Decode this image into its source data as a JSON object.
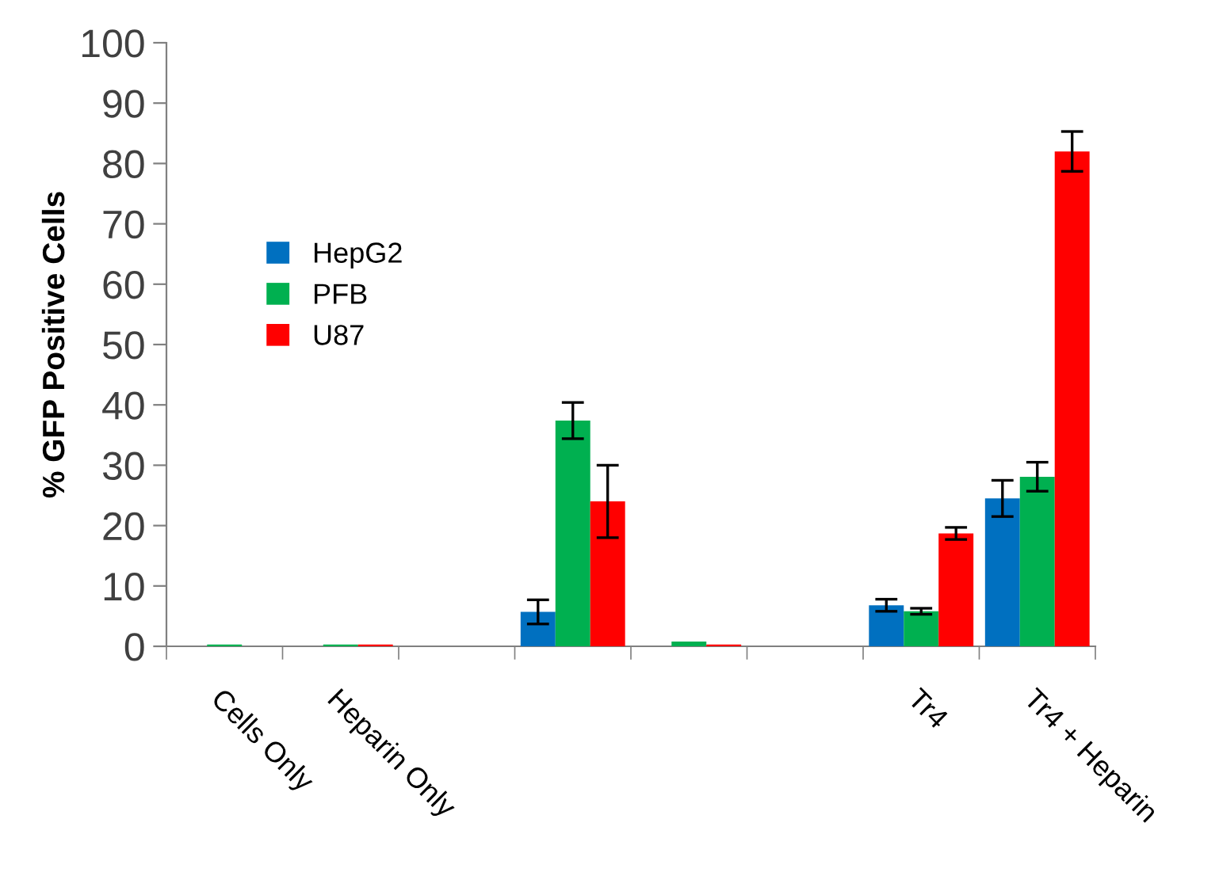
{
  "chart_data": {
    "type": "bar",
    "ylabel": "% GFP Positive Cells",
    "categories": [
      "Cells Only",
      "Heparin Only",
      null,
      null,
      null,
      null,
      "Tr4",
      "Tr4 + Heparin"
    ],
    "series": [
      {
        "name": "HepG2",
        "color": "#0070c0",
        "values": [
          0,
          0,
          null,
          5.7,
          0,
          null,
          6.8,
          24.5
        ],
        "errors": [
          null,
          null,
          null,
          2,
          null,
          null,
          1,
          3
        ]
      },
      {
        "name": "PFB",
        "color": "#00b050",
        "values": [
          0.3,
          0.3,
          null,
          37.4,
          0.8,
          null,
          5.8,
          28.1
        ],
        "errors": [
          null,
          null,
          null,
          3,
          null,
          null,
          0.5,
          2.4
        ]
      },
      {
        "name": "U87",
        "color": "#ff0000",
        "values": [
          0,
          0.3,
          null,
          24,
          0.3,
          null,
          18.7,
          82
        ],
        "errors": [
          null,
          null,
          null,
          6,
          null,
          null,
          1,
          3.3
        ]
      }
    ],
    "ylim": [
      0,
      100
    ],
    "yticks": [
      0,
      10,
      20,
      30,
      40,
      50,
      60,
      70,
      80,
      90,
      100
    ],
    "grid": false,
    "legend": "left"
  }
}
